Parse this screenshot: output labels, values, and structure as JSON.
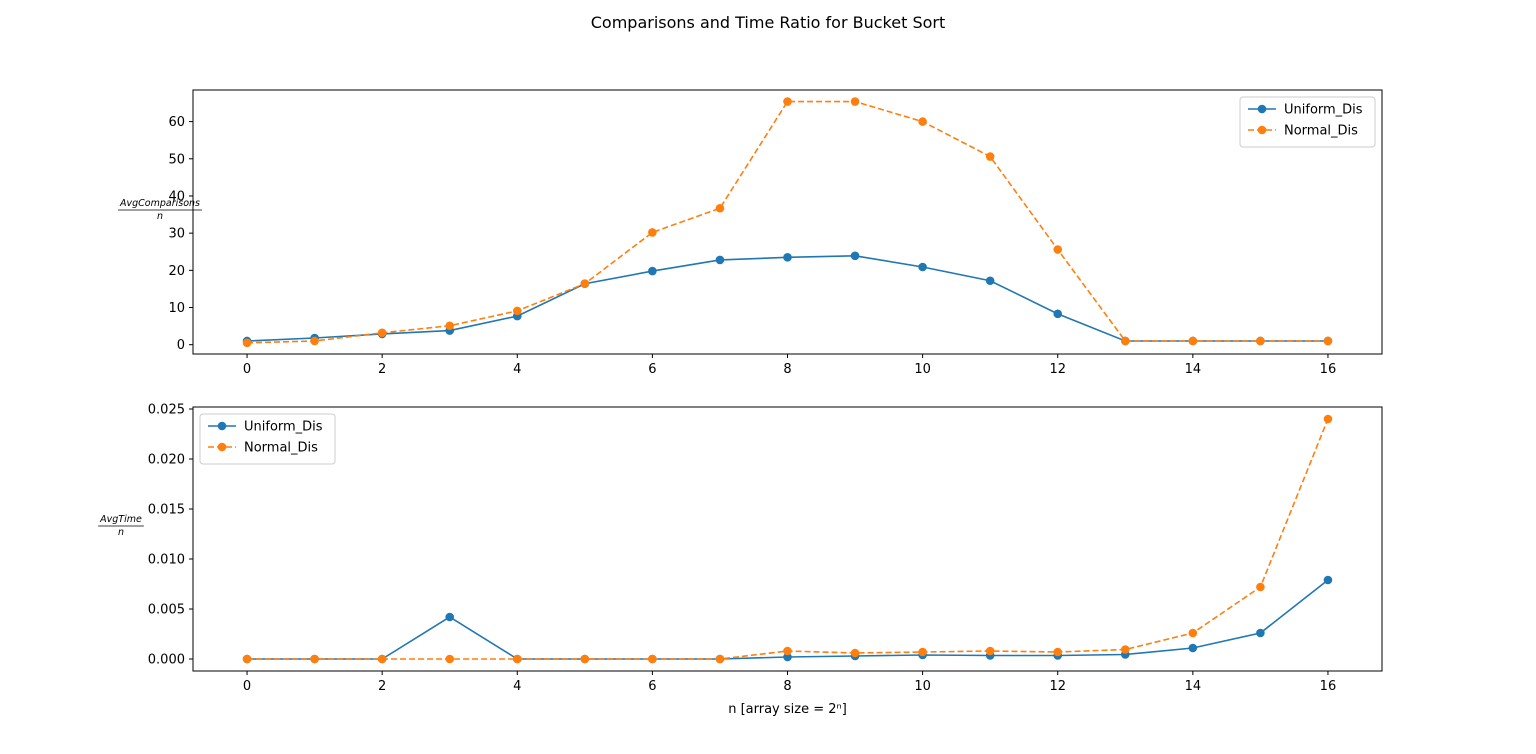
{
  "chart_data": {
    "suptitle": "Comparisons and Time Ratio for Bucket Sort",
    "charts": [
      {
        "type": "line",
        "ylabel": {
          "numerator": "AvgComparisons",
          "denominator": "n"
        },
        "xlabel": "",
        "xlim": [
          -0.8,
          16.8
        ],
        "ylim": [
          -2.5,
          68.5
        ],
        "xticks": [
          0,
          2,
          4,
          6,
          8,
          10,
          12,
          14,
          16
        ],
        "yticks": [
          0,
          10,
          20,
          30,
          40,
          50,
          60
        ],
        "ytick_labels": [
          "0",
          "10",
          "20",
          "30",
          "40",
          "50",
          "60"
        ],
        "legend_position": "upper right",
        "x": [
          0,
          1,
          2,
          3,
          4,
          5,
          6,
          7,
          8,
          9,
          10,
          11,
          12,
          13,
          14,
          15,
          16
        ],
        "series": [
          {
            "name": "Uniform_Dis",
            "color": "#1f77b4",
            "linestyle": "solid",
            "marker": "circle",
            "values": [
              1.0,
              1.8,
              2.9,
              3.8,
              7.7,
              16.4,
              19.8,
              22.8,
              23.5,
              23.9,
              20.9,
              17.2,
              8.3,
              1.0,
              1.0,
              1.0,
              1.0
            ]
          },
          {
            "name": "Normal_Dis",
            "color": "#ff7f0e",
            "linestyle": "dashed",
            "marker": "circle",
            "values": [
              0.5,
              1.0,
              3.2,
              5.1,
              9.1,
              16.4,
              30.2,
              36.7,
              65.4,
              65.4,
              60.0,
              50.6,
              25.6,
              1.0,
              1.0,
              1.0,
              1.0
            ]
          }
        ]
      },
      {
        "type": "line",
        "ylabel": {
          "numerator": "AvgTime",
          "denominator": "n"
        },
        "xlabel": "n [array size = 2ⁿ]",
        "xlim": [
          -0.8,
          16.8
        ],
        "ylim": [
          -0.0012,
          0.0252
        ],
        "xticks": [
          0,
          2,
          4,
          6,
          8,
          10,
          12,
          14,
          16
        ],
        "yticks": [
          0,
          0.005,
          0.01,
          0.015,
          0.02,
          0.025
        ],
        "ytick_labels": [
          "0.000",
          "0.005",
          "0.010",
          "0.015",
          "0.020",
          "0.025"
        ],
        "legend_position": "upper left",
        "x": [
          0,
          1,
          2,
          3,
          4,
          5,
          6,
          7,
          8,
          9,
          10,
          11,
          12,
          13,
          14,
          15,
          16
        ],
        "series": [
          {
            "name": "Uniform_Dis",
            "color": "#1f77b4",
            "linestyle": "solid",
            "marker": "circle",
            "values": [
              0.0,
              0.0,
              0.0,
              0.0042,
              0.0,
              0.0,
              0.0,
              0.0,
              0.0002,
              0.0003,
              0.0004,
              0.00035,
              0.00035,
              0.00045,
              0.0011,
              0.0026,
              0.0079
            ]
          },
          {
            "name": "Normal_Dis",
            "color": "#ff7f0e",
            "linestyle": "dashed",
            "marker": "circle",
            "values": [
              0.0,
              0.0,
              0.0,
              0.0,
              0.0,
              0.0,
              0.0,
              0.0,
              0.0008,
              0.0006,
              0.0007,
              0.0008,
              0.0007,
              0.00095,
              0.0026,
              0.0072,
              0.024
            ]
          }
        ]
      }
    ]
  }
}
